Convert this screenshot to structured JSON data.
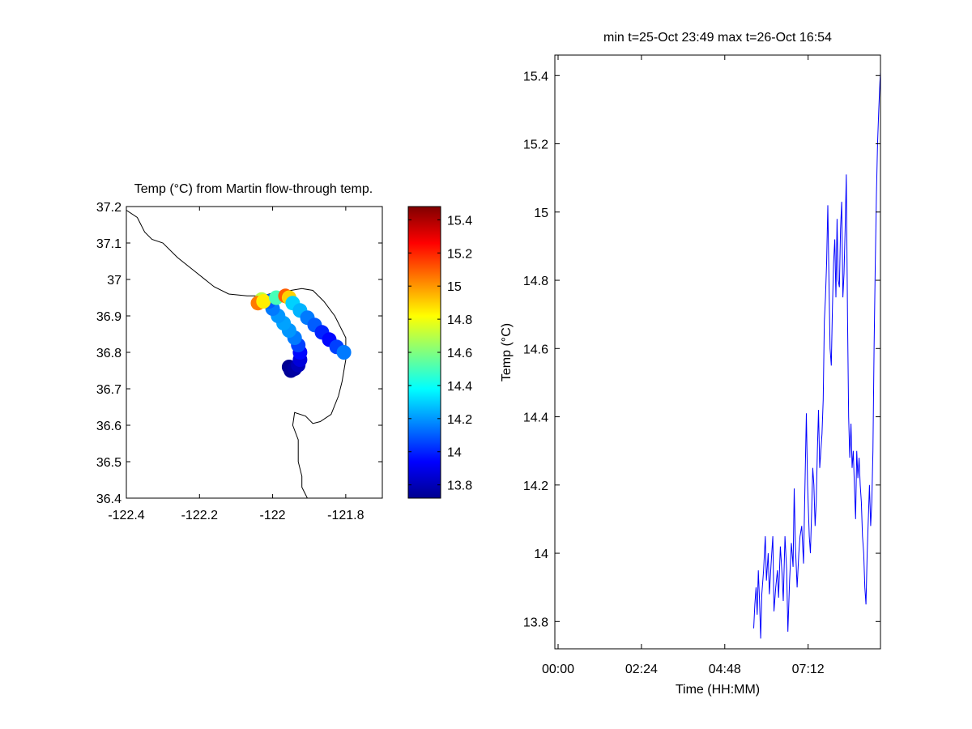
{
  "figure_background": "#ffffff",
  "chart_data": [
    {
      "type": "scatter",
      "title": "Temp (°C) from Martin flow-through temp.",
      "xlabel": "",
      "ylabel": "",
      "xlim": [
        -122.4,
        -121.7
      ],
      "ylim": [
        36.4,
        37.2
      ],
      "xticks": [
        -122.4,
        -122.2,
        -122,
        -121.8
      ],
      "xtick_labels": [
        "-122.4",
        "-122.2",
        "-122",
        "-121.8"
      ],
      "yticks": [
        36.4,
        36.5,
        36.6,
        36.7,
        36.8,
        36.9,
        37,
        37.1,
        37.2
      ],
      "ytick_labels": [
        "36.4",
        "36.5",
        "36.6",
        "36.7",
        "36.8",
        "36.9",
        "37",
        "37.1",
        "37.2"
      ],
      "grid": false,
      "coastline": [
        [
          -122.4,
          37.19
        ],
        [
          -122.37,
          37.17
        ],
        [
          -122.35,
          37.13
        ],
        [
          -122.33,
          37.11
        ],
        [
          -122.3,
          37.1
        ],
        [
          -122.26,
          37.06
        ],
        [
          -122.21,
          37.02
        ],
        [
          -122.16,
          36.98
        ],
        [
          -122.12,
          36.96
        ],
        [
          -122.07,
          36.955
        ],
        [
          -122.03,
          36.955
        ],
        [
          -121.99,
          36.965
        ],
        [
          -121.95,
          36.97
        ],
        [
          -121.92,
          36.975
        ],
        [
          -121.89,
          36.97
        ],
        [
          -121.86,
          36.94
        ],
        [
          -121.83,
          36.9
        ],
        [
          -121.8,
          36.84
        ],
        [
          -121.8,
          36.78
        ],
        [
          -121.81,
          36.72
        ],
        [
          -121.82,
          36.68
        ],
        [
          -121.84,
          36.63
        ],
        [
          -121.87,
          36.61
        ],
        [
          -121.89,
          36.605
        ],
        [
          -121.91,
          36.625
        ],
        [
          -121.94,
          36.635
        ],
        [
          -121.945,
          36.6
        ],
        [
          -121.93,
          36.56
        ],
        [
          -121.93,
          36.5
        ],
        [
          -121.92,
          36.46
        ],
        [
          -121.92,
          36.43
        ],
        [
          -121.9,
          36.39
        ]
      ],
      "track": [
        {
          "lon": -121.955,
          "lat": 36.76,
          "temp": 13.75
        },
        {
          "lon": -121.95,
          "lat": 36.75,
          "temp": 13.76
        },
        {
          "lon": -121.94,
          "lat": 36.755,
          "temp": 13.78
        },
        {
          "lon": -121.93,
          "lat": 36.765,
          "temp": 13.82
        },
        {
          "lon": -121.925,
          "lat": 36.78,
          "temp": 13.88
        },
        {
          "lon": -121.925,
          "lat": 36.8,
          "temp": 13.95
        },
        {
          "lon": -121.93,
          "lat": 36.82,
          "temp": 14.05
        },
        {
          "lon": -121.94,
          "lat": 36.84,
          "temp": 14.15
        },
        {
          "lon": -121.955,
          "lat": 36.86,
          "temp": 14.2
        },
        {
          "lon": -121.97,
          "lat": 36.88,
          "temp": 14.22
        },
        {
          "lon": -121.985,
          "lat": 36.9,
          "temp": 14.2
        },
        {
          "lon": -122.0,
          "lat": 36.92,
          "temp": 14.15
        },
        {
          "lon": -122.01,
          "lat": 36.94,
          "temp": 14.1
        },
        {
          "lon": -122.03,
          "lat": 36.945,
          "temp": 14.7
        },
        {
          "lon": -122.04,
          "lat": 36.935,
          "temp": 15.05
        },
        {
          "lon": -122.025,
          "lat": 36.94,
          "temp": 14.85
        },
        {
          "lon": -121.99,
          "lat": 36.95,
          "temp": 14.5
        },
        {
          "lon": -121.965,
          "lat": 36.955,
          "temp": 15.1
        },
        {
          "lon": -121.955,
          "lat": 36.95,
          "temp": 14.9
        },
        {
          "lon": -121.945,
          "lat": 36.935,
          "temp": 14.3
        },
        {
          "lon": -121.925,
          "lat": 36.915,
          "temp": 14.25
        },
        {
          "lon": -121.905,
          "lat": 36.895,
          "temp": 14.15
        },
        {
          "lon": -121.885,
          "lat": 36.875,
          "temp": 14.1
        },
        {
          "lon": -121.865,
          "lat": 36.855,
          "temp": 14.0
        },
        {
          "lon": -121.845,
          "lat": 36.835,
          "temp": 13.95
        },
        {
          "lon": -121.825,
          "lat": 36.815,
          "temp": 14.05
        },
        {
          "lon": -121.805,
          "lat": 36.8,
          "temp": 14.15
        }
      ]
    },
    {
      "type": "colorbar",
      "colormap": "jet",
      "clim": [
        13.72,
        15.48
      ],
      "ticks": [
        13.8,
        14,
        14.2,
        14.4,
        14.6,
        14.8,
        15,
        15.2,
        15.4
      ],
      "tick_labels": [
        "13.8",
        "14",
        "14.2",
        "14.4",
        "14.6",
        "14.8",
        "15",
        "15.2",
        "15.4"
      ]
    },
    {
      "type": "line",
      "title": "min t=25-Oct 23:49 max t=26-Oct 16:54",
      "xlabel": "Time (HH:MM)",
      "ylabel": "Temp (°C)",
      "xlim": [
        "00:00",
        "09:17"
      ],
      "ylim": [
        13.72,
        15.46
      ],
      "xticks": [
        "00:00",
        "02:24",
        "04:48",
        "07:12"
      ],
      "xtick_labels": [
        "00:00",
        "02:24",
        "04:48",
        "07:12"
      ],
      "yticks": [
        13.8,
        14,
        14.2,
        14.4,
        14.6,
        14.8,
        15,
        15.2,
        15.4
      ],
      "ytick_labels": [
        "13.8",
        "14",
        "14.2",
        "14.4",
        "14.6",
        "14.8",
        "15",
        "15.2",
        "15.4"
      ],
      "grid": false,
      "series": [
        {
          "color": "#0000ff",
          "x": [
            "05:38",
            "05:40",
            "05:42",
            "05:44",
            "05:46",
            "05:48",
            "05:50",
            "05:52",
            "05:55",
            "05:58",
            "06:00",
            "06:03",
            "06:05",
            "06:08",
            "06:11",
            "06:13",
            "06:16",
            "06:19",
            "06:21",
            "06:24",
            "06:27",
            "06:29",
            "06:32",
            "06:35",
            "06:37",
            "06:40",
            "06:43",
            "06:46",
            "06:48",
            "06:50",
            "06:53",
            "06:56",
            "06:58",
            "07:01",
            "07:04",
            "07:06",
            "07:09",
            "07:11",
            "07:14",
            "07:16",
            "07:18",
            "07:20",
            "07:22",
            "07:24",
            "07:26",
            "07:28",
            "07:30",
            "07:32",
            "07:34",
            "07:36",
            "07:38",
            "07:40",
            "07:42",
            "07:44",
            "07:46",
            "07:48",
            "07:50",
            "07:52",
            "07:54",
            "07:56",
            "07:58",
            "08:00",
            "08:02",
            "08:04",
            "08:06",
            "08:08",
            "08:10",
            "08:12",
            "08:14",
            "08:16",
            "08:18",
            "08:20",
            "08:22",
            "08:24",
            "08:26",
            "08:28",
            "08:30",
            "08:32",
            "08:34",
            "08:36",
            "08:38",
            "08:40",
            "08:42",
            "08:44",
            "08:46",
            "08:48",
            "08:50",
            "08:52",
            "08:54",
            "08:56",
            "08:58",
            "09:00",
            "09:02",
            "09:04",
            "09:06",
            "09:08",
            "09:10",
            "09:12",
            "09:14",
            "09:16",
            "09:17"
          ],
          "y": [
            13.78,
            13.85,
            13.9,
            13.82,
            13.95,
            13.86,
            13.75,
            13.88,
            13.95,
            14.05,
            13.92,
            14.0,
            13.88,
            13.97,
            14.05,
            13.83,
            13.9,
            13.95,
            13.87,
            14.02,
            13.94,
            13.86,
            14.05,
            13.95,
            13.77,
            13.92,
            14.03,
            13.96,
            14.19,
            14.02,
            13.9,
            14.0,
            14.05,
            14.08,
            13.97,
            14.15,
            14.41,
            14.2,
            14.05,
            14.0,
            14.12,
            14.25,
            14.2,
            14.08,
            14.15,
            14.3,
            14.42,
            14.25,
            14.3,
            14.35,
            14.45,
            14.68,
            14.75,
            14.85,
            15.02,
            14.8,
            14.6,
            14.55,
            14.72,
            14.85,
            14.92,
            14.75,
            14.98,
            14.8,
            14.78,
            14.95,
            15.03,
            14.75,
            14.82,
            14.95,
            15.11,
            14.7,
            14.4,
            14.28,
            14.38,
            14.25,
            14.3,
            14.2,
            14.1,
            14.3,
            14.22,
            14.28,
            14.2,
            14.15,
            14.05,
            14.0,
            13.9,
            13.85,
            14.0,
            14.1,
            14.2,
            14.08,
            14.15,
            14.3,
            14.6,
            14.85,
            15.05,
            15.2,
            15.3,
            15.38,
            15.41
          ]
        }
      ]
    }
  ]
}
